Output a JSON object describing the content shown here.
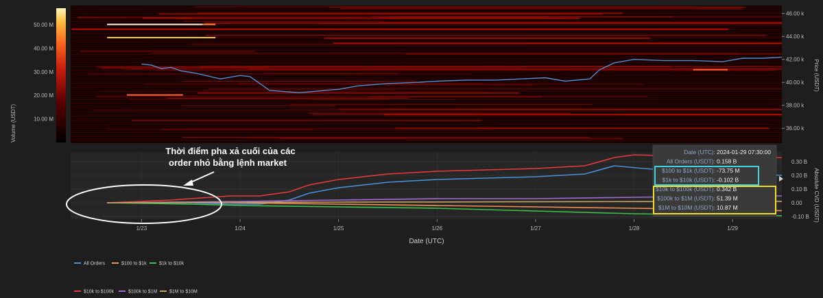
{
  "chart_data": {
    "type": "line",
    "annotation": {
      "line1": "Thời điểm pha xả cuối của các",
      "line2": "order nhỏ bằng lệnh market"
    },
    "heatmap_panel": {
      "type": "heatmap",
      "price_axis": {
        "label": "Price (USDT)",
        "ticks": [
          "46.00 k",
          "44.00 k",
          "42.00 k",
          "40.00 k",
          "38.00 k",
          "36.00 k"
        ],
        "tick_values": [
          46000,
          44000,
          42000,
          40000,
          38000,
          36000
        ],
        "range": [
          34700,
          46700
        ]
      },
      "volume_colorbar": {
        "label": "Volume (USDT)",
        "ticks": [
          "50.00 M",
          "40.00 M",
          "30.00 M",
          "20.00 M",
          "10.00 M"
        ],
        "tick_values": [
          50,
          40,
          30,
          20,
          10
        ],
        "range": [
          0,
          57
        ]
      },
      "price_series": {
        "name": "Price",
        "color": "#4f8fd6",
        "x": [
          0,
          0.1,
          0.2,
          0.3,
          0.4,
          0.55,
          0.8,
          1.0,
          1.1,
          1.3,
          1.6,
          2.0,
          2.2,
          2.5,
          2.8,
          3.0,
          3.3,
          3.6,
          3.85,
          4.1,
          4.3,
          4.55,
          4.65,
          4.8,
          5.0,
          5.3,
          5.6,
          5.9,
          6.1,
          6.3,
          6.5,
          6.8,
          7.1,
          7.3,
          7.5,
          7.8
        ],
        "values": [
          41600,
          41500,
          41200,
          41300,
          41000,
          40800,
          40300,
          40600,
          40500,
          39300,
          39100,
          39400,
          39700,
          39900,
          40000,
          40100,
          40200,
          40200,
          40300,
          40400,
          40100,
          40300,
          41100,
          41700,
          42000,
          41900,
          41900,
          41800,
          42100,
          42100,
          42200,
          42400,
          42600,
          42400,
          42100,
          42200
        ]
      },
      "level_lines": [
        {
          "price": 45050,
          "x0": -0.35,
          "x1": 0.62,
          "color": "#fff4e8",
          "volume_m": 57
        },
        {
          "price": 45050,
          "x0": 0.62,
          "x1": 0.75,
          "color": "#ff8a3a",
          "volume_m": 35
        },
        {
          "price": 43900,
          "x0": -0.35,
          "x1": 0.75,
          "color": "#ffd36b",
          "volume_m": 48
        },
        {
          "price": 38900,
          "x0": -0.15,
          "x1": 0.42,
          "color": "#ff6a3a",
          "volume_m": 32
        },
        {
          "price": 41100,
          "x0": 5.6,
          "x1": 5.95,
          "color": "#ff5a30",
          "volume_m": 28
        }
      ]
    },
    "cvd_panel": {
      "ylabel": "Absolute CVD (USDT)",
      "yticks": [
        "0.30 B",
        "0.20 B",
        "0.10 B",
        "0.00",
        "-0.10 B"
      ],
      "ytick_values": [
        0.3,
        0.2,
        0.1,
        0.0,
        -0.1
      ],
      "ylim": [
        -0.12,
        0.37
      ],
      "series": [
        {
          "name": "All Orders",
          "color": "#4a90d9",
          "x": [
            -0.35,
            0.5,
            0.9,
            1.2,
            1.5,
            1.7,
            2.0,
            2.5,
            3.0,
            3.5,
            4.0,
            4.5,
            4.8,
            5.1,
            5.5,
            6.0,
            6.5,
            6.8,
            7.0,
            7.3
          ],
          "values": [
            0.0,
            0.0,
            -0.01,
            -0.01,
            0.02,
            0.07,
            0.11,
            0.15,
            0.17,
            0.18,
            0.19,
            0.21,
            0.27,
            0.25,
            0.23,
            0.22,
            0.2,
            0.18,
            0.17,
            0.158
          ]
        },
        {
          "name": "$100 to $1k",
          "color": "#f39050",
          "x": [
            -0.35,
            0.5,
            1.0,
            2.0,
            3.0,
            4.0,
            5.0,
            6.0,
            7.3
          ],
          "values": [
            0.0,
            0.005,
            0.0,
            -0.01,
            -0.02,
            -0.03,
            -0.04,
            -0.05,
            -0.07
          ]
        },
        {
          "name": "$1k to $10k",
          "color": "#3cc24a",
          "x": [
            -0.35,
            0.5,
            1.0,
            2.0,
            3.0,
            4.0,
            5.0,
            6.0,
            7.3
          ],
          "values": [
            0.0,
            -0.01,
            -0.02,
            -0.03,
            -0.04,
            -0.06,
            -0.08,
            -0.09,
            -0.102
          ]
        },
        {
          "name": "$10k to $100k",
          "color": "#e83a3a",
          "x": [
            -0.35,
            0.3,
            0.9,
            1.2,
            1.5,
            1.7,
            2.0,
            2.5,
            3.0,
            3.5,
            4.0,
            4.5,
            4.8,
            5.0,
            5.5,
            6.0,
            6.5,
            6.8,
            7.0,
            7.3
          ],
          "values": [
            0.0,
            0.02,
            0.05,
            0.05,
            0.08,
            0.13,
            0.17,
            0.21,
            0.23,
            0.24,
            0.25,
            0.27,
            0.33,
            0.35,
            0.34,
            0.33,
            0.33,
            0.32,
            0.34,
            0.342
          ]
        },
        {
          "name": "$100k to $1M",
          "color": "#a66ad8",
          "x": [
            -0.35,
            1.0,
            2.0,
            3.0,
            4.0,
            5.0,
            6.0,
            7.3
          ],
          "values": [
            0.0,
            0.01,
            0.02,
            0.03,
            0.03,
            0.04,
            0.05,
            0.05139
          ]
        },
        {
          "name": "$1M to $10M",
          "color": "#c8a060",
          "x": [
            -0.35,
            1.0,
            2.0,
            3.0,
            4.0,
            5.0,
            6.0,
            7.3
          ],
          "values": [
            0.0,
            0.003,
            0.005,
            0.006,
            0.008,
            0.009,
            0.01,
            0.01087
          ]
        }
      ]
    },
    "x_axis": {
      "label": "Date (UTC)",
      "ticks": [
        "1/23",
        "1/24",
        "1/25",
        "1/26",
        "1/27",
        "1/28",
        "1/29"
      ],
      "tick_values": [
        0,
        1,
        2,
        3,
        4,
        5,
        6
      ],
      "range": [
        -0.72,
        6.5
      ]
    },
    "legend": {
      "placement": "bottom-left",
      "items": [
        "All Orders",
        "$100 to $1k",
        "$1k to $10k",
        "$10k to $100k",
        "$100k to $1M",
        "$1M to $10M"
      ],
      "colors": [
        "#4a90d9",
        "#f39050",
        "#3cc24a",
        "#e83a3a",
        "#a66ad8",
        "#c8a060"
      ]
    },
    "tooltip": {
      "rows": [
        {
          "key": "Date (UTC):",
          "value": "2024-01-29 07:30:00"
        },
        {
          "key": "All Orders (USDT):",
          "value": "0.158 B"
        },
        {
          "key": "$100 to $1k (USDT):",
          "value": "-73.75 M"
        },
        {
          "key": "$1k to $10k (USDT):",
          "value": "-0.102 B"
        },
        {
          "key": "$10k to $100k (USDT):",
          "value": "0.342 B"
        },
        {
          "key": "$100k to $1M (USDT):",
          "value": "51.39 M"
        },
        {
          "key": "$1M to $10M (USDT):",
          "value": "10.87 M"
        }
      ],
      "highlight_cyan": "#3fd3e0",
      "highlight_yellow": "#f2de2a"
    }
  }
}
